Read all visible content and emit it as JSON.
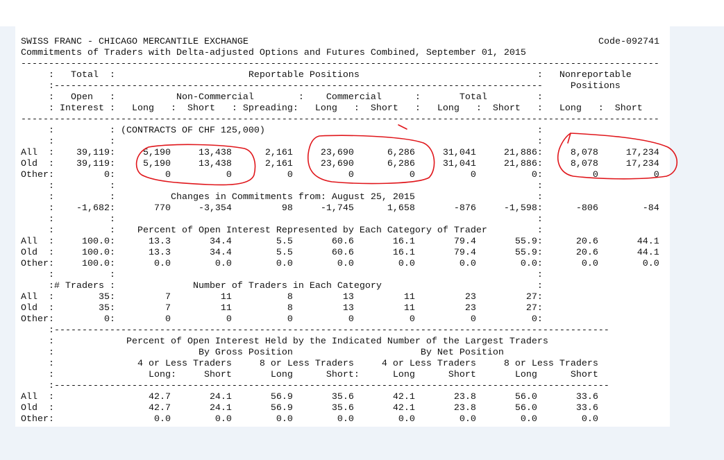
{
  "report": {
    "title": "SWISS FRANC - CHICAGO MERCANTILE EXCHANGE",
    "code": "Code-092741",
    "subtitle": "Commitments of Traders with Delta-adjusted Options and Futures Combined, September 01, 2015",
    "lines": [
      "-------------------------------------------------------------------------------------------------------------------",
      "     :   Total  :                        Reportable Positions                                :   Nonreportable",
      "     :----------------------------------------------------------------------------------------     Positions",
      "     :   Open   :           Non-Commercial        :    Commercial      :       Total         :",
      "     : Interest :   Long   :  Short   : Spreading:   Long   :  Short   :   Long   :  Short   :   Long   :  Short",
      "-------------------------------------------------------------------------------------------------------------------",
      "     :          : (CONTRACTS OF CHF 125,000)                                                 :",
      "     :          :                                                                            :",
      "All  :    39,119:     5,190     13,438      2,161     23,690      6,286     31,041     21,886:     8,078     17,234",
      "Old  :    39,119:     5,190     13,438      2,161     23,690      6,286     31,041     21,886:     8,078     17,234",
      "Other:         0:         0          0          0          0          0          0          0:         0          0",
      "     :          :                                                                            :",
      "     :          :          Changes in Commitments from: August 25, 2015                      :",
      "     :    -1,682:       770     -3,354         98     -1,745      1,658       -876     -1,598:      -806        -84",
      "     :          :                                                                            :",
      "     :          :    Percent of Open Interest Represented by Each Category of Trader         :",
      "All  :     100.0:      13.3       34.4        5.5       60.6       16.1       79.4       55.9:      20.6       44.1",
      "Old  :     100.0:      13.3       34.4        5.5       60.6       16.1       79.4       55.9:      20.6       44.1",
      "Other:     100.0:       0.0        0.0        0.0        0.0        0.0        0.0        0.0:       0.0        0.0",
      "     :          :                                                                            :",
      "     :# Traders :              Number of Traders in Each Category                            :",
      "All  :        35:         7         11          8         13         11         23         27:",
      "Old  :        35:         7         11          8         13         11         23         27:",
      "Other:         0:         0          0          0          0          0          0          0:",
      "     :----------------------------------------------------------------------------------------------------",
      "     :             Percent of Open Interest Held by the Indicated Number of the Largest Traders",
      "     :                          By Gross Position                       By Net Position",
      "     :               4 or Less Traders     8 or Less Traders     4 or Less Traders     8 or Less Traders",
      "     :                 Long:     Short       Long      Short:      Long      Short       Long      Short",
      "     :----------------------------------------------------------------------------------------------------",
      "All  :                 42.7       24.1       56.9       35.6       42.1       23.8       56.0       33.6",
      "Old  :                 42.7       24.1       56.9       35.6       42.1       23.8       56.0       33.6",
      "Other:                  0.0        0.0        0.0        0.0        0.0        0.0        0.0        0.0"
    ]
  }
}
